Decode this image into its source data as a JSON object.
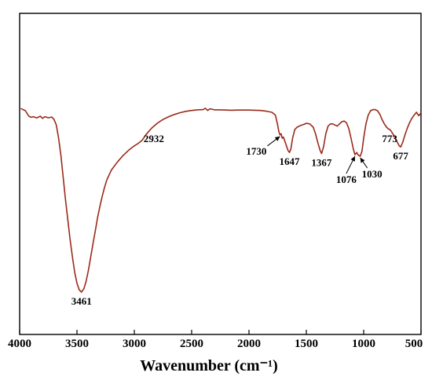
{
  "chart_data": {
    "type": "line",
    "title": "",
    "xlabel": "Wavenumber (cm⁻¹)",
    "ylabel": "",
    "xlim": [
      4000,
      500
    ],
    "x_reversed": true,
    "ylim": [
      0,
      100
    ],
    "y_ticks_shown": false,
    "grid": false,
    "legend": "none",
    "line_color": "#9b2a1a",
    "x_ticks": [
      4000,
      3500,
      3000,
      2500,
      2000,
      1500,
      1000,
      500
    ],
    "x_tick_labels": [
      "4000",
      "3500",
      "3000",
      "2500",
      "2000",
      "1500",
      "1000",
      "500"
    ],
    "series": [
      {
        "points": [
          [
            3990,
            83.5
          ],
          [
            3950,
            82.5
          ],
          [
            3920,
            80.0
          ],
          [
            3900,
            79.5
          ],
          [
            3880,
            79.8
          ],
          [
            3850,
            79.2
          ],
          [
            3820,
            80.0
          ],
          [
            3800,
            79.0
          ],
          [
            3780,
            79.8
          ],
          [
            3750,
            79.3
          ],
          [
            3720,
            79.6
          ],
          [
            3700,
            78.5
          ],
          [
            3680,
            76.0
          ],
          [
            3660,
            70.0
          ],
          [
            3640,
            62.0
          ],
          [
            3620,
            52.0
          ],
          [
            3600,
            42.0
          ],
          [
            3580,
            33.0
          ],
          [
            3560,
            24.0
          ],
          [
            3540,
            16.0
          ],
          [
            3520,
            9.0
          ],
          [
            3500,
            4.0
          ],
          [
            3480,
            1.0
          ],
          [
            3461,
            0.0
          ],
          [
            3440,
            1.5
          ],
          [
            3420,
            5.0
          ],
          [
            3400,
            10.0
          ],
          [
            3380,
            16.0
          ],
          [
            3360,
            22.0
          ],
          [
            3340,
            28.0
          ],
          [
            3320,
            34.0
          ],
          [
            3300,
            39.0
          ],
          [
            3280,
            43.5
          ],
          [
            3260,
            47.5
          ],
          [
            3240,
            51.0
          ],
          [
            3200,
            55.5
          ],
          [
            3150,
            59.0
          ],
          [
            3100,
            62.0
          ],
          [
            3050,
            64.5
          ],
          [
            3000,
            66.5
          ],
          [
            2970,
            67.5
          ],
          [
            2932,
            69.0
          ],
          [
            2900,
            71.5
          ],
          [
            2850,
            74.5
          ],
          [
            2800,
            76.8
          ],
          [
            2750,
            78.5
          ],
          [
            2700,
            79.8
          ],
          [
            2650,
            80.8
          ],
          [
            2600,
            81.6
          ],
          [
            2550,
            82.2
          ],
          [
            2500,
            82.6
          ],
          [
            2450,
            82.9
          ],
          [
            2400,
            83.0
          ],
          [
            2380,
            83.6
          ],
          [
            2360,
            82.6
          ],
          [
            2340,
            83.4
          ],
          [
            2300,
            82.9
          ],
          [
            2250,
            82.9
          ],
          [
            2200,
            82.8
          ],
          [
            2150,
            82.7
          ],
          [
            2100,
            82.8
          ],
          [
            2050,
            82.8
          ],
          [
            2000,
            82.8
          ],
          [
            1950,
            82.7
          ],
          [
            1900,
            82.6
          ],
          [
            1850,
            82.3
          ],
          [
            1800,
            81.8
          ],
          [
            1770,
            80.5
          ],
          [
            1750,
            76.0
          ],
          [
            1740,
            73.0
          ],
          [
            1730,
            71.5
          ],
          [
            1720,
            72.0
          ],
          [
            1710,
            70.0
          ],
          [
            1700,
            70.5
          ],
          [
            1690,
            69.0
          ],
          [
            1670,
            66.0
          ],
          [
            1660,
            64.5
          ],
          [
            1647,
            63.5
          ],
          [
            1635,
            65.0
          ],
          [
            1620,
            70.0
          ],
          [
            1600,
            74.0
          ],
          [
            1580,
            75.0
          ],
          [
            1550,
            75.8
          ],
          [
            1520,
            76.3
          ],
          [
            1500,
            76.8
          ],
          [
            1470,
            76.5
          ],
          [
            1440,
            75.0
          ],
          [
            1420,
            72.0
          ],
          [
            1400,
            68.0
          ],
          [
            1380,
            64.5
          ],
          [
            1367,
            63.0
          ],
          [
            1350,
            66.0
          ],
          [
            1330,
            72.0
          ],
          [
            1310,
            75.5
          ],
          [
            1290,
            76.5
          ],
          [
            1270,
            76.5
          ],
          [
            1250,
            76.0
          ],
          [
            1230,
            75.5
          ],
          [
            1210,
            76.5
          ],
          [
            1190,
            77.5
          ],
          [
            1170,
            77.8
          ],
          [
            1150,
            77.0
          ],
          [
            1130,
            74.5
          ],
          [
            1110,
            70.0
          ],
          [
            1090,
            65.0
          ],
          [
            1076,
            62.5
          ],
          [
            1060,
            63.5
          ],
          [
            1050,
            62.5
          ],
          [
            1040,
            62.0
          ],
          [
            1030,
            61.8
          ],
          [
            1015,
            64.0
          ],
          [
            1000,
            70.0
          ],
          [
            980,
            76.5
          ],
          [
            960,
            80.5
          ],
          [
            940,
            82.5
          ],
          [
            920,
            83.0
          ],
          [
            900,
            83.0
          ],
          [
            880,
            82.5
          ],
          [
            860,
            81.0
          ],
          [
            840,
            78.5
          ],
          [
            820,
            76.5
          ],
          [
            800,
            75.0
          ],
          [
            785,
            74.2
          ],
          [
            773,
            74.0
          ],
          [
            760,
            73.2
          ],
          [
            740,
            71.5
          ],
          [
            720,
            69.5
          ],
          [
            700,
            67.5
          ],
          [
            690,
            66.5
          ],
          [
            677,
            66.0
          ],
          [
            660,
            68.0
          ],
          [
            640,
            71.5
          ],
          [
            620,
            74.5
          ],
          [
            600,
            77.0
          ],
          [
            580,
            79.0
          ],
          [
            560,
            80.5
          ],
          [
            540,
            81.8
          ],
          [
            520,
            80.2
          ],
          [
            505,
            81.2
          ]
        ]
      }
    ],
    "annotations": [
      {
        "text": "3461",
        "x": 3461,
        "y": 0.0,
        "placement": "below"
      },
      {
        "text": "2932",
        "x": 2932,
        "y": 69.0,
        "placement": "right"
      },
      {
        "text": "1730",
        "x": 1730,
        "y": 71.5,
        "placement": "left",
        "arrow": true
      },
      {
        "text": "1647",
        "x": 1647,
        "y": 63.5,
        "placement": "below"
      },
      {
        "text": "1367",
        "x": 1367,
        "y": 63.0,
        "placement": "below"
      },
      {
        "text": "1076",
        "x": 1076,
        "y": 62.5,
        "placement": "below",
        "arrow": true
      },
      {
        "text": "1030",
        "x": 1030,
        "y": 61.8,
        "placement": "below-right",
        "arrow": true
      },
      {
        "text": "773",
        "x": 773,
        "y": 74.0,
        "placement": "below"
      },
      {
        "text": "677",
        "x": 677,
        "y": 66.0,
        "placement": "below"
      }
    ]
  }
}
